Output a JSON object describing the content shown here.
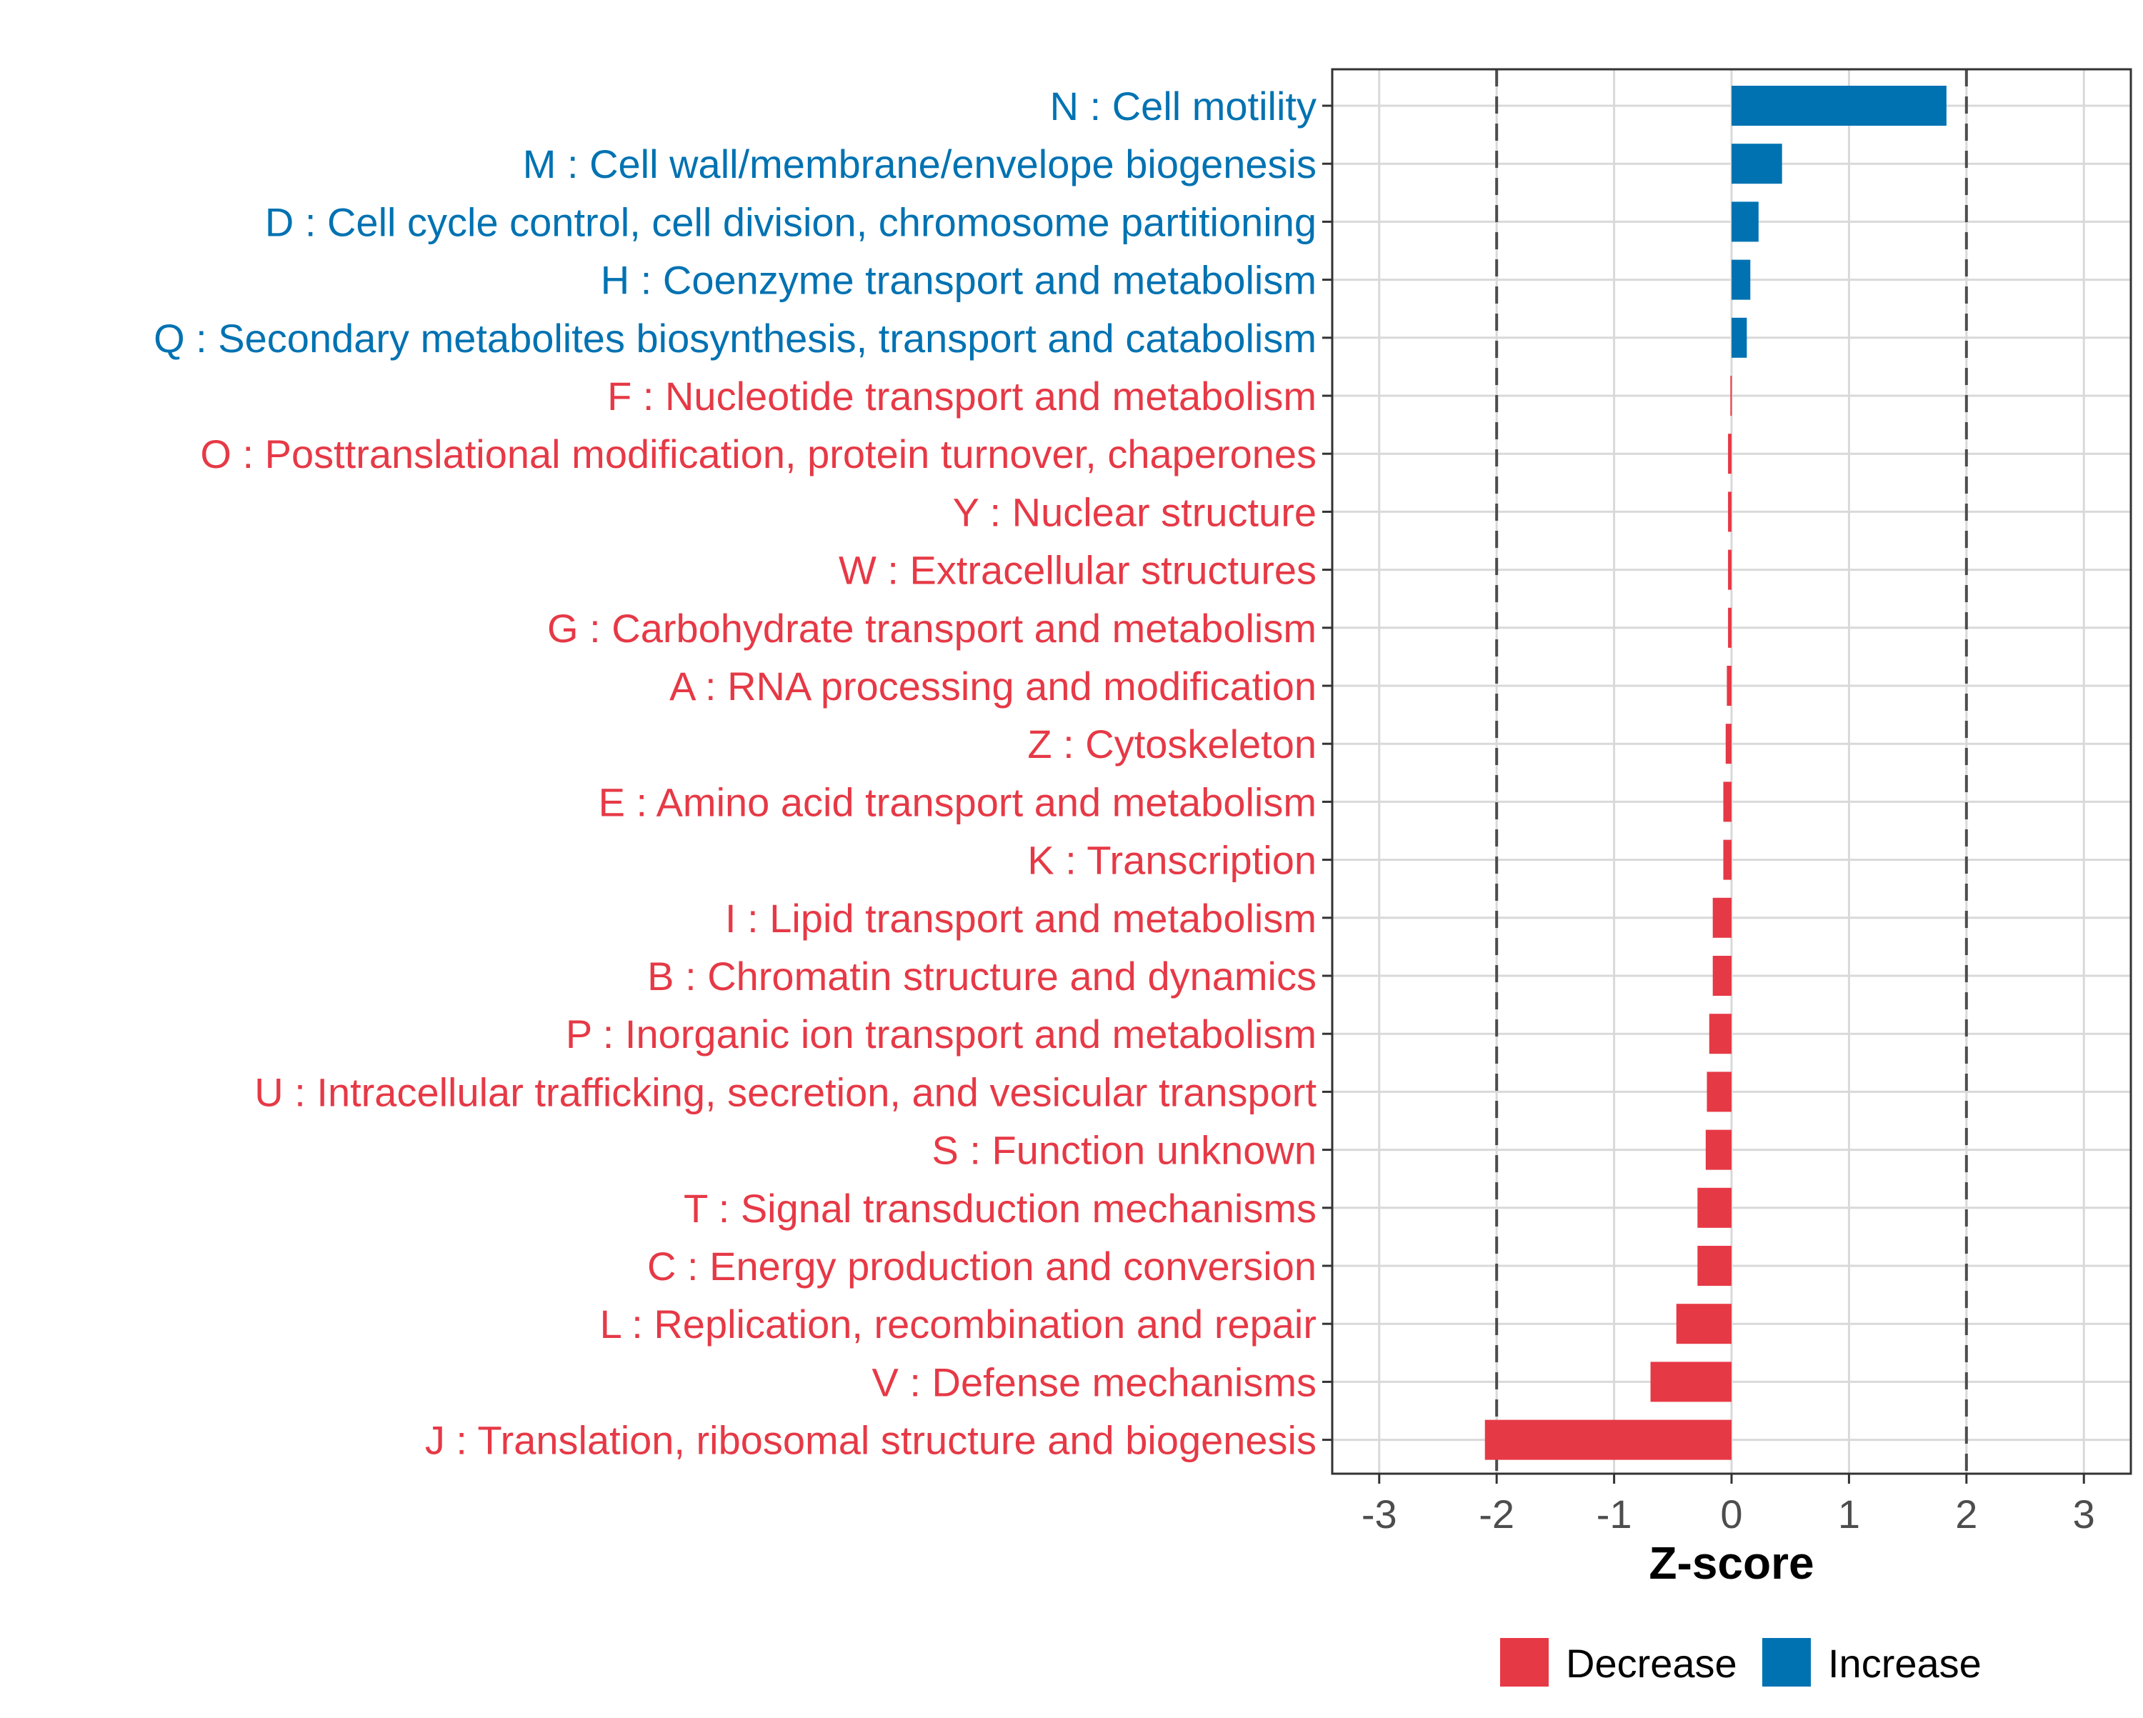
{
  "chart_data": {
    "type": "bar",
    "orientation": "horizontal",
    "title": "",
    "xlabel": "Z-score",
    "ylabel": "",
    "xlim": [
      -3.4,
      3.4
    ],
    "xticks": [
      -3,
      -2,
      -1,
      0,
      1,
      2,
      3
    ],
    "xtick_labels": [
      "-3",
      "-2",
      "-1",
      "0",
      "1",
      "2",
      "3"
    ],
    "reference_lines": [
      -2,
      2
    ],
    "grid": true,
    "legend_position": "bottom",
    "colors": {
      "Decrease": "#e63946",
      "Increase": "#0072b2"
    },
    "legend": [
      {
        "name": "Decrease",
        "color": "#e63946"
      },
      {
        "name": "Increase",
        "color": "#0072b2"
      }
    ],
    "bars": [
      {
        "label": "N : Cell motility",
        "value": 1.83,
        "group": "Increase"
      },
      {
        "label": "M : Cell wall/membrane/envelope biogenesis",
        "value": 0.43,
        "group": "Increase"
      },
      {
        "label": "D : Cell cycle control, cell division, chromosome partitioning",
        "value": 0.23,
        "group": "Increase"
      },
      {
        "label": "H : Coenzyme transport and metabolism",
        "value": 0.16,
        "group": "Increase"
      },
      {
        "label": "Q : Secondary metabolites biosynthesis, transport and catabolism",
        "value": 0.13,
        "group": "Increase"
      },
      {
        "label": "F : Nucleotide transport and metabolism",
        "value": -0.01,
        "group": "Decrease"
      },
      {
        "label": "O : Posttranslational modification, protein turnover, chaperones",
        "value": -0.03,
        "group": "Decrease"
      },
      {
        "label": "Y : Nuclear structure",
        "value": -0.03,
        "group": "Decrease"
      },
      {
        "label": "W : Extracellular structures",
        "value": -0.03,
        "group": "Decrease"
      },
      {
        "label": "G : Carbohydrate transport and metabolism",
        "value": -0.03,
        "group": "Decrease"
      },
      {
        "label": "A : RNA processing and modification",
        "value": -0.04,
        "group": "Decrease"
      },
      {
        "label": "Z : Cytoskeleton",
        "value": -0.05,
        "group": "Decrease"
      },
      {
        "label": "E : Amino acid transport and metabolism",
        "value": -0.07,
        "group": "Decrease"
      },
      {
        "label": "K : Transcription",
        "value": -0.07,
        "group": "Decrease"
      },
      {
        "label": "I : Lipid transport and metabolism",
        "value": -0.16,
        "group": "Decrease"
      },
      {
        "label": "B : Chromatin structure and dynamics",
        "value": -0.16,
        "group": "Decrease"
      },
      {
        "label": "P : Inorganic ion transport and metabolism",
        "value": -0.19,
        "group": "Decrease"
      },
      {
        "label": "U : Intracellular trafficking, secretion, and vesicular transport",
        "value": -0.21,
        "group": "Decrease"
      },
      {
        "label": "S : Function unknown",
        "value": -0.22,
        "group": "Decrease"
      },
      {
        "label": "T : Signal transduction mechanisms",
        "value": -0.29,
        "group": "Decrease"
      },
      {
        "label": "C : Energy production and conversion",
        "value": -0.29,
        "group": "Decrease"
      },
      {
        "label": "L : Replication, recombination and repair",
        "value": -0.47,
        "group": "Decrease"
      },
      {
        "label": "V : Defense mechanisms",
        "value": -0.69,
        "group": "Decrease"
      },
      {
        "label": "J : Translation, ribosomal structure and biogenesis",
        "value": -2.1,
        "group": "Decrease"
      }
    ]
  }
}
